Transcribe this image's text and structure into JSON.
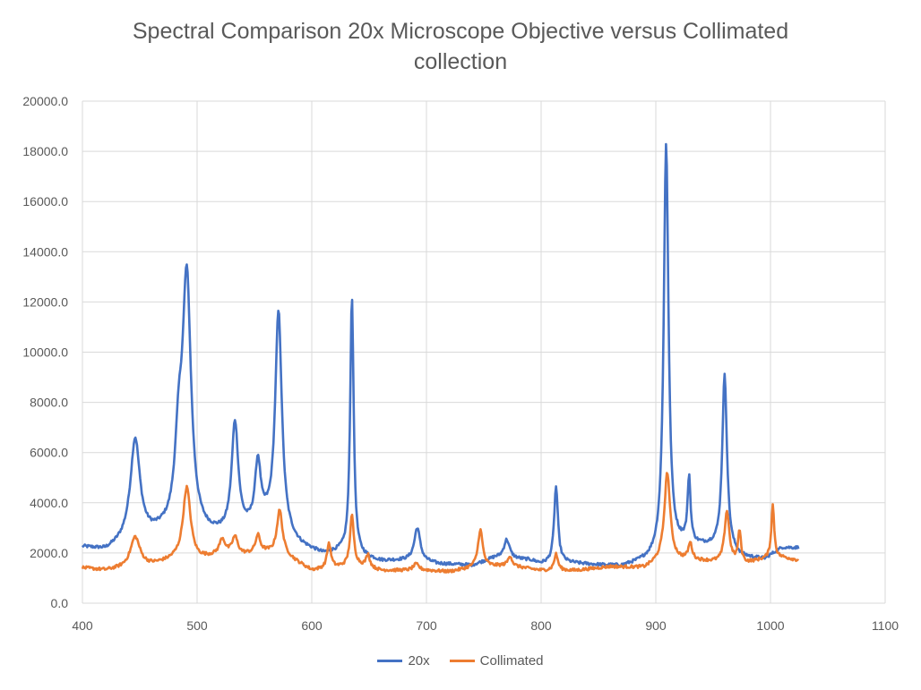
{
  "chart_data": {
    "type": "line",
    "title_line1": "Spectral Comparison 20x Microscope Objective versus Collimated",
    "title_line2": "collection",
    "xlim": [
      400,
      1100
    ],
    "ylim": [
      0,
      20000
    ],
    "x_ticks": [
      "400",
      "500",
      "600",
      "700",
      "800",
      "900",
      "1000",
      "1100"
    ],
    "y_ticks": [
      "0.0",
      "2000.0",
      "4000.0",
      "6000.0",
      "8000.0",
      "10000.0",
      "12000.0",
      "14000.0",
      "16000.0",
      "18000.0",
      "20000.0"
    ],
    "grid": true,
    "legend_position": "bottom",
    "series": [
      {
        "name": "20x",
        "color": "#4472C4",
        "baseline": [
          [
            400,
            2200
          ],
          [
            420,
            2050
          ],
          [
            440,
            2400
          ],
          [
            470,
            2700
          ],
          [
            500,
            2600
          ],
          [
            530,
            2600
          ],
          [
            560,
            3000
          ],
          [
            590,
            2200
          ],
          [
            610,
            1900
          ],
          [
            625,
            2000
          ],
          [
            645,
            1800
          ],
          [
            660,
            1650
          ],
          [
            690,
            1700
          ],
          [
            710,
            1550
          ],
          [
            740,
            1500
          ],
          [
            760,
            1800
          ],
          [
            790,
            1700
          ],
          [
            800,
            1550
          ],
          [
            820,
            1600
          ],
          [
            850,
            1500
          ],
          [
            870,
            1450
          ],
          [
            895,
            1700
          ],
          [
            925,
            2300
          ],
          [
            950,
            2200
          ],
          [
            975,
            1800
          ],
          [
            995,
            1750
          ],
          [
            1010,
            2200
          ],
          [
            1025,
            2200
          ]
        ],
        "peaks": [
          {
            "x": 446,
            "height": 4000,
            "width": 5
          },
          {
            "x": 491,
            "height": 10000,
            "width": 4.5
          },
          {
            "x": 484,
            "height": 3000,
            "width": 4
          },
          {
            "x": 533,
            "height": 4400,
            "width": 3.5
          },
          {
            "x": 553,
            "height": 2500,
            "width": 3
          },
          {
            "x": 571,
            "height": 8800,
            "width": 3.5
          },
          {
            "x": 635,
            "height": 10300,
            "width": 1.8
          },
          {
            "x": 692,
            "height": 1300,
            "width": 3
          },
          {
            "x": 770,
            "height": 750,
            "width": 3
          },
          {
            "x": 813,
            "height": 3050,
            "width": 2
          },
          {
            "x": 909,
            "height": 16300,
            "width": 2.5
          },
          {
            "x": 929,
            "height": 2600,
            "width": 1.5
          },
          {
            "x": 960,
            "height": 7000,
            "width": 2.5
          }
        ]
      },
      {
        "name": "Collimated",
        "color": "#ED7D31",
        "baseline": [
          [
            400,
            1400
          ],
          [
            420,
            1300
          ],
          [
            440,
            1400
          ],
          [
            460,
            1500
          ],
          [
            480,
            1700
          ],
          [
            500,
            1700
          ],
          [
            520,
            1900
          ],
          [
            540,
            1900
          ],
          [
            560,
            2000
          ],
          [
            580,
            1800
          ],
          [
            600,
            1300
          ],
          [
            620,
            1400
          ],
          [
            640,
            1500
          ],
          [
            660,
            1300
          ],
          [
            690,
            1300
          ],
          [
            700,
            1300
          ],
          [
            720,
            1250
          ],
          [
            740,
            1400
          ],
          [
            770,
            1500
          ],
          [
            800,
            1300
          ],
          [
            830,
            1300
          ],
          [
            860,
            1450
          ],
          [
            890,
            1400
          ],
          [
            905,
            1700
          ],
          [
            930,
            1700
          ],
          [
            960,
            1600
          ],
          [
            980,
            1600
          ],
          [
            1000,
            1800
          ],
          [
            1012,
            1800
          ],
          [
            1025,
            1700
          ]
        ],
        "peaks": [
          {
            "x": 446,
            "height": 1200,
            "width": 5
          },
          {
            "x": 491,
            "height": 2900,
            "width": 4
          },
          {
            "x": 522,
            "height": 600,
            "width": 3
          },
          {
            "x": 533,
            "height": 700,
            "width": 3
          },
          {
            "x": 553,
            "height": 700,
            "width": 2.5
          },
          {
            "x": 572,
            "height": 1800,
            "width": 3
          },
          {
            "x": 615,
            "height": 1000,
            "width": 2
          },
          {
            "x": 635,
            "height": 2000,
            "width": 2
          },
          {
            "x": 649,
            "height": 500,
            "width": 2
          },
          {
            "x": 691,
            "height": 250,
            "width": 3
          },
          {
            "x": 747,
            "height": 1500,
            "width": 2.5
          },
          {
            "x": 773,
            "height": 400,
            "width": 2
          },
          {
            "x": 813,
            "height": 650,
            "width": 2
          },
          {
            "x": 910,
            "height": 3500,
            "width": 3
          },
          {
            "x": 930,
            "height": 650,
            "width": 2
          },
          {
            "x": 962,
            "height": 2050,
            "width": 2.5
          },
          {
            "x": 973,
            "height": 1250,
            "width": 1.5
          },
          {
            "x": 1002,
            "height": 2100,
            "width": 1.5
          }
        ]
      }
    ]
  }
}
